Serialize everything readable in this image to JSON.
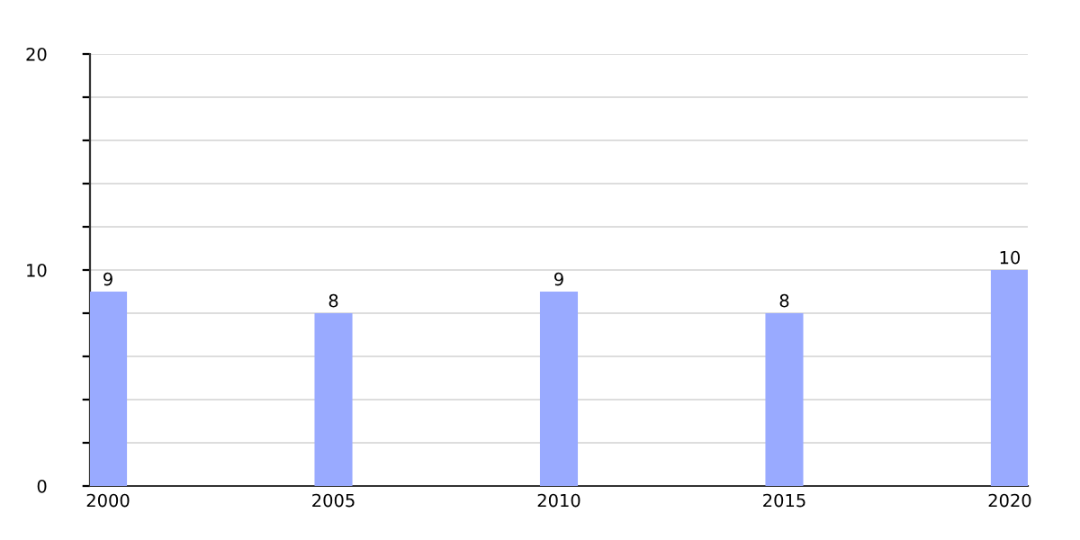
{
  "chart_data": {
    "type": "bar",
    "x": [
      2000,
      2005,
      2010,
      2015,
      2020
    ],
    "values": [
      9,
      8,
      9,
      8,
      10
    ],
    "color": "#99aaff",
    "xlim": [
      1999.6,
      2020.4
    ],
    "xticks": [
      2000,
      2005,
      2010,
      2015,
      2020
    ],
    "ylim": [
      0,
      20
    ],
    "yticks": [
      0,
      {
        "value": 2,
        "label": null
      },
      {
        "value": 4,
        "label": null
      },
      {
        "value": 6,
        "label": null
      },
      {
        "value": 8,
        "label": null
      },
      10,
      {
        "value": 12,
        "label": null
      },
      {
        "value": 14,
        "label": null
      },
      {
        "value": 16,
        "label": null
      },
      {
        "value": 18,
        "label": null
      },
      20
    ],
    "grid": "y",
    "data_labels": true
  }
}
